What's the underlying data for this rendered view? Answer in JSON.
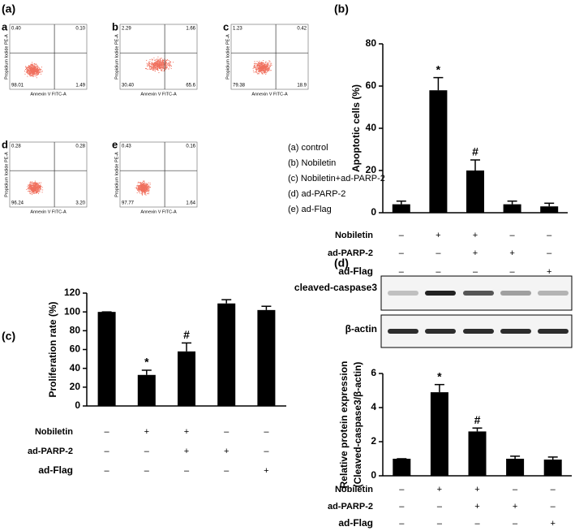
{
  "figure_label": "(a)",
  "flow_axes": {
    "x_label": "Annexin V FITC-A",
    "y_label": "Propidium Iodide PE-A"
  },
  "flow_panels": [
    {
      "label": "a",
      "ul": "0.40",
      "ur": "0.10",
      "ll": "98.01",
      "lr": "1.49"
    },
    {
      "label": "b",
      "ul": "2.29",
      "ur": "1.66",
      "ll": "30.40",
      "lr": "65.6"
    },
    {
      "label": "c",
      "ul": "1.23",
      "ur": "0.42",
      "ll": "79.38",
      "lr": "18.9"
    },
    {
      "label": "d",
      "ul": "0.28",
      "ur": "0.28",
      "ll": "96.24",
      "lr": "3.20"
    },
    {
      "label": "e",
      "ul": "0.43",
      "ur": "0.16",
      "ll": "97.77",
      "lr": "1.64"
    }
  ],
  "legend": [
    "(a) control",
    "(b) Nobiletin",
    "(c) Nobiletin+ad-PARP-2",
    "(d) ad-PARP-2",
    "(e) ad-Flag"
  ],
  "blot_labels": [
    "cleaved-caspase3",
    "β-actin"
  ],
  "chart_data": [
    {
      "type": "bar",
      "panel_label": "(b)",
      "ylabel": [
        "Apoptotic cells (%)"
      ],
      "color": "#000000",
      "values": [
        4,
        58,
        20,
        4,
        3
      ],
      "errors": [
        1.5,
        6,
        5,
        1.5,
        1.5
      ],
      "value_annotations": [
        null,
        "*",
        "#",
        null,
        null
      ],
      "ylim": [
        0,
        80
      ],
      "yticks": [
        0,
        20,
        40,
        60,
        80
      ],
      "treatments": [
        {
          "name": "Nobiletin",
          "signs": [
            "–",
            "+",
            "+",
            "–",
            "–"
          ]
        },
        {
          "name": "ad-PARP-2",
          "signs": [
            "–",
            "–",
            "+",
            "+",
            "–"
          ]
        },
        {
          "name": "ad-Flag",
          "signs": [
            "–",
            "–",
            "–",
            "–",
            "+"
          ]
        }
      ]
    },
    {
      "type": "bar",
      "panel_label": "(c)",
      "ylabel": [
        "Proliferation rate (%)"
      ],
      "color": "#000000",
      "values": [
        100,
        33,
        58,
        109,
        102
      ],
      "errors": [
        0,
        5,
        9,
        4,
        4
      ],
      "value_annotations": [
        null,
        "*",
        "#",
        null,
        null
      ],
      "ylim": [
        0,
        120
      ],
      "yticks": [
        0,
        20,
        40,
        60,
        80,
        100,
        120
      ],
      "treatments": [
        {
          "name": "Nobiletin",
          "signs": [
            "–",
            "+",
            "+",
            "–",
            "–"
          ]
        },
        {
          "name": "ad-PARP-2",
          "signs": [
            "–",
            "–",
            "+",
            "+",
            "–"
          ]
        },
        {
          "name": "ad-Flag",
          "signs": [
            "–",
            "–",
            "–",
            "–",
            "+"
          ]
        }
      ]
    },
    {
      "type": "bar",
      "panel_label": "(d)",
      "ylabel": [
        "Relative protein expression",
        "(Cleaved-caspase3/β-actin)"
      ],
      "color": "#000000",
      "values": [
        1,
        4.9,
        2.6,
        1,
        0.95
      ],
      "errors": [
        0,
        0.45,
        0.2,
        0.15,
        0.15
      ],
      "value_annotations": [
        null,
        "*",
        "#",
        null,
        null
      ],
      "ylim": [
        0,
        6
      ],
      "yticks": [
        0,
        2,
        4,
        6
      ],
      "treatments": [
        {
          "name": "Nobiletin",
          "signs": [
            "–",
            "+",
            "+",
            "–",
            "–"
          ]
        },
        {
          "name": "ad-PARP-2",
          "signs": [
            "–",
            "–",
            "+",
            "+",
            "–"
          ]
        },
        {
          "name": "ad-Flag",
          "signs": [
            "–",
            "–",
            "–",
            "–",
            "+"
          ]
        }
      ]
    }
  ]
}
